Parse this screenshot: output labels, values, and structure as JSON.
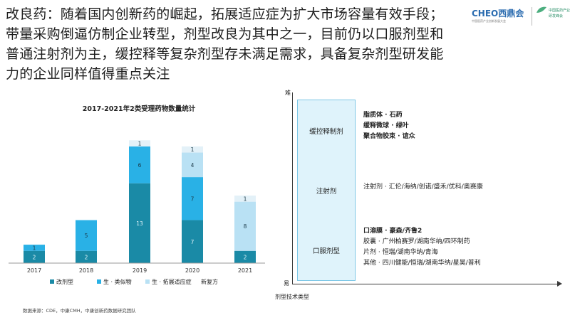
{
  "headline": [
    "改良药：随着国内创新药的崛起，拓展适应症为扩大市场容量有效手段；",
    "带量采购倒逼仿制企业转型，剂型改良为其中之一，目前仍以口服剂型和",
    "普通注射剂为主，缓控释等复杂剂型存未满足需求，具备复杂剂型研发能",
    "力的企业同样值得重点关注"
  ],
  "logo": {
    "main_text": "CHEO西鼎会",
    "sub_text": "中国医药产业创新发展大会",
    "right_text": [
      "中国医药产业",
      "研发峰会"
    ]
  },
  "chart_data": {
    "type": "bar",
    "stacked": true,
    "title": "2017-2021年2类受理药物数量统计",
    "categories": [
      "2017",
      "2018",
      "2019",
      "2020",
      "2021"
    ],
    "series": [
      {
        "name": "改剂型",
        "color": "#1a8aa6",
        "values": [
          2,
          2,
          13,
          7,
          2
        ]
      },
      {
        "name": "生 · 类似物",
        "color": "#29b1e6",
        "values": [
          1,
          5,
          6,
          7,
          0
        ]
      },
      {
        "name": "生 · 拓展适应症",
        "color": "#b9e1f4",
        "values": [
          0,
          0,
          0,
          4,
          8
        ]
      },
      {
        "name": "新复方",
        "color": "#e3f1f8",
        "values": [
          0,
          0,
          1,
          1,
          1
        ]
      }
    ],
    "ylim": [
      0,
      22
    ],
    "grid": false,
    "legend_position": "bottom"
  },
  "legend_labels": [
    "改剂型",
    "生 · 类似物",
    "生 · 拓展适应症",
    "新复方"
  ],
  "source": "数据来源：CDE，中康CMH，中康创新药数据研究团队",
  "diagram": {
    "axis_top": "难",
    "axis_bottom": "易",
    "axis_x_label": "剂型技术类型",
    "categories": [
      {
        "label": "缓控释制剂",
        "items": [
          {
            "text": "脂质体 · 石药",
            "bold": true
          },
          {
            "text": "缓释微球 · 绿叶",
            "bold": true
          },
          {
            "text": "聚合物胶束 · 谊众",
            "bold": true
          }
        ]
      },
      {
        "label": "注射剂",
        "items": [
          {
            "text": "注射剂 · 汇伦/海纳/创诺/盛禾/优科/奥赛康",
            "bold": false
          }
        ]
      },
      {
        "label": "口服剂型",
        "items": [
          {
            "text": "口溶膜 · 豪森/齐鲁2",
            "bold": true
          },
          {
            "text": "胶囊 · 广州柏赛罗/湖南华纳/四环制药",
            "bold": false
          },
          {
            "text": "片剂 · 恒瑞/湖南华纳/青海",
            "bold": false
          },
          {
            "text": "其他 · 四川健能/恒瑞/湖南华纳/星昊/普利",
            "bold": false
          }
        ]
      }
    ]
  }
}
